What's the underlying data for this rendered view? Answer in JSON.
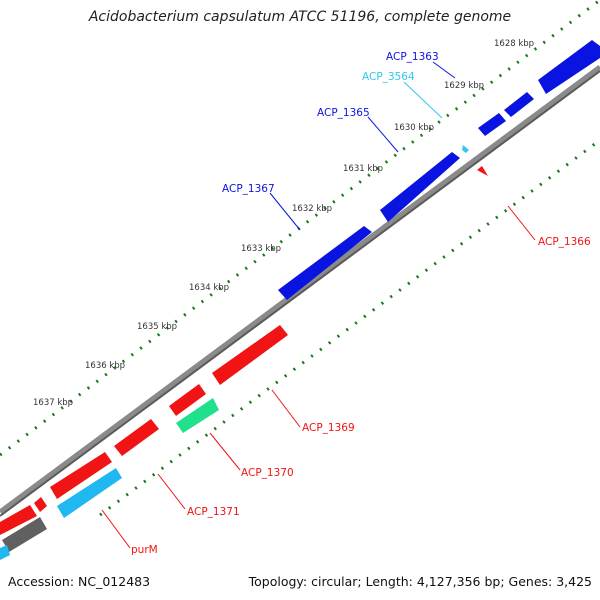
{
  "title": "Acidobacterium capsulatum ATCC 51196, complete genome",
  "footer": {
    "accession": "Accession: NC_012483",
    "summary": "Topology: circular; Length: 4,127,356 bp; Genes: 3,425"
  },
  "colors": {
    "forward_gene": "#0a14e0",
    "forward_light": "#30c8f0",
    "reverse_gene": "#f01414",
    "reverse_rna": "#20e08c",
    "reverse_cyan": "#20b8f0",
    "reverse_gray": "#606060",
    "backbone": "#8a8a8a",
    "tick": "#1a7a1a",
    "kbp_label": "#333333"
  },
  "kbp_ticks": [
    "1628 kbp",
    "1629 kbp",
    "1630 kbp",
    "1631 kbp",
    "1632 kbp",
    "1633 kbp",
    "1634 kbp",
    "1635 kbp",
    "1636 kbp",
    "1637 kbp"
  ],
  "gene_labels": [
    {
      "text": "ACP_1363",
      "color": "#0a14e0"
    },
    {
      "text": "ACP_3564",
      "color": "#30c8f0"
    },
    {
      "text": "ACP_1365",
      "color": "#0a14e0"
    },
    {
      "text": "ACP_1367",
      "color": "#0a14e0"
    },
    {
      "text": "ACP_1366",
      "color": "#f01414"
    },
    {
      "text": "ACP_1369",
      "color": "#f01414"
    },
    {
      "text": "ACP_1370",
      "color": "#f01414"
    },
    {
      "text": "ACP_1371",
      "color": "#f01414"
    },
    {
      "text": "purM",
      "color": "#f01414"
    }
  ]
}
